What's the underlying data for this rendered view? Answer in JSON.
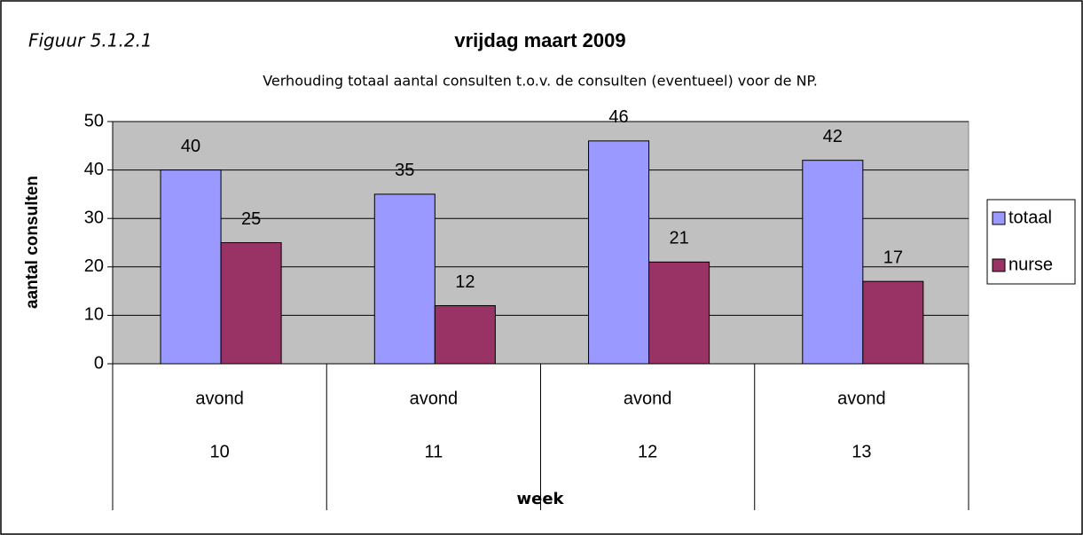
{
  "chart_data": {
    "type": "bar",
    "figure_label": "Figuur 5.1.2.1",
    "title": "vrijdag maart 2009",
    "subtitle": "Verhouding totaal aantal consulten t.o.v. de consulten (eventueel) voor de NP.",
    "y_label": "aantal consulten",
    "x_label": "week",
    "categories": [
      [
        "avond",
        "10"
      ],
      [
        "avond",
        "11"
      ],
      [
        "avond",
        "12"
      ],
      [
        "avond",
        "13"
      ]
    ],
    "series": [
      {
        "name": "totaal",
        "color": "#9999ff",
        "values": [
          40,
          35,
          46,
          42
        ]
      },
      {
        "name": "nurse",
        "color": "#993366",
        "values": [
          25,
          12,
          21,
          17
        ]
      }
    ],
    "ylim": [
      0,
      50
    ],
    "yticks": [
      0,
      10,
      20,
      30,
      40,
      50
    ],
    "grid": true,
    "plot_background": "#c0c0c0",
    "legend": "right"
  }
}
